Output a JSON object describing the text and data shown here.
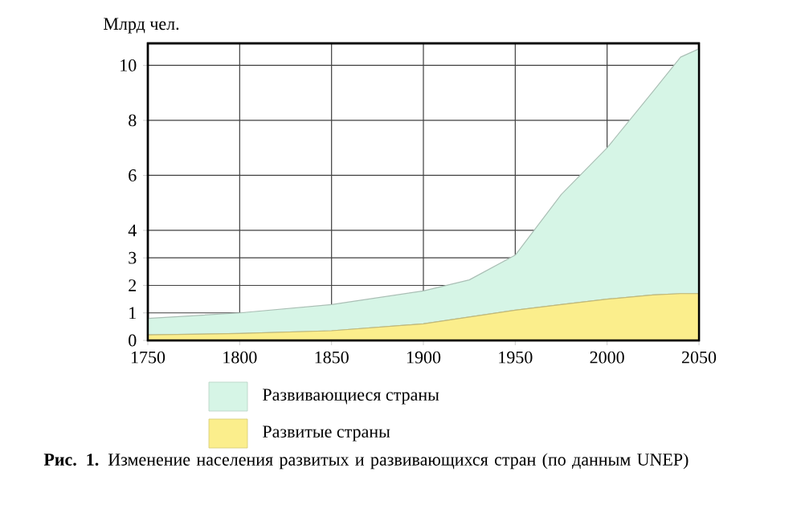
{
  "chart_data": {
    "type": "area",
    "stacked": true,
    "ylabel": "Млрд чел.",
    "x": [
      1750,
      1800,
      1850,
      1900,
      1925,
      1950,
      1975,
      2000,
      2025,
      2040,
      2050
    ],
    "series": [
      {
        "name": "Развитые страны",
        "color": "#fbee8c",
        "values": [
          0.2,
          0.25,
          0.35,
          0.6,
          0.85,
          1.1,
          1.3,
          1.5,
          1.65,
          1.7,
          1.7
        ]
      },
      {
        "name": "Развивающиеся страны",
        "color": "#d6f5e6",
        "values": [
          0.6,
          0.75,
          0.95,
          1.2,
          1.35,
          2.0,
          4.0,
          5.5,
          7.4,
          8.6,
          8.9
        ]
      }
    ],
    "xlim": [
      1750,
      2050
    ],
    "xticks": [
      1750,
      1800,
      1850,
      1900,
      1950,
      2000,
      2050
    ],
    "ylim": [
      0,
      10.8
    ],
    "yticks": [
      0,
      1,
      2,
      3,
      4,
      6,
      8,
      10
    ],
    "grid": true,
    "legend": "bottom",
    "annotations": [
      "**Рис. 1.** Изменение населения развитых и развивающихся стран (по данным UNEP)"
    ]
  }
}
